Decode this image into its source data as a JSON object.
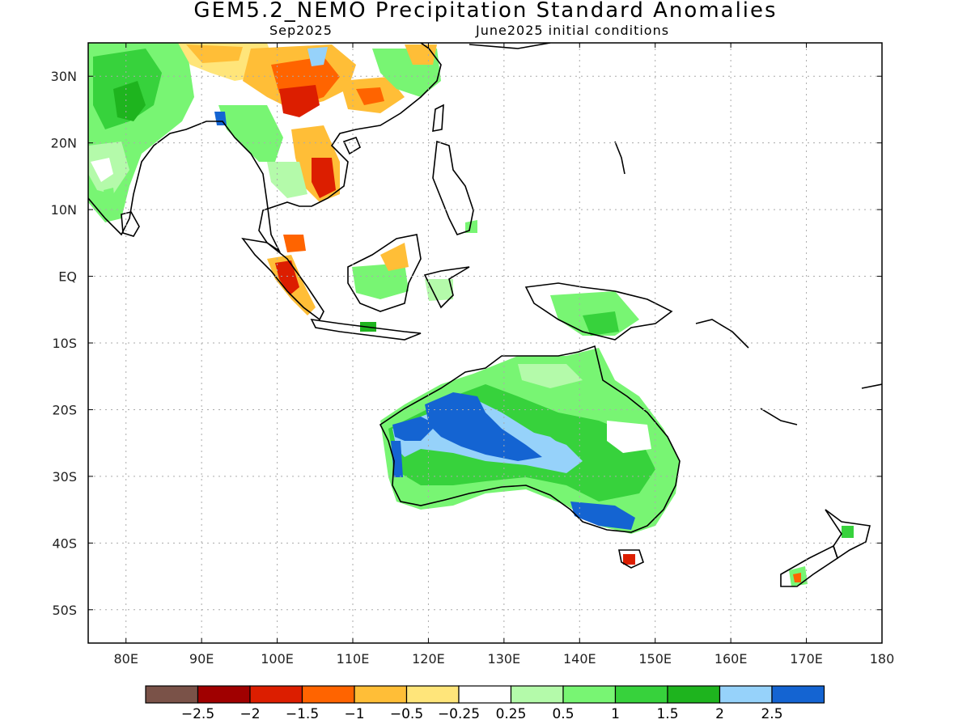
{
  "header": {
    "title": "GEM5.2_NEMO Precipitation Standard Anomalies",
    "valid_month": "Sep2025",
    "init": "June2025 initial conditions"
  },
  "map": {
    "lon_range": [
      75,
      180
    ],
    "lat_range": [
      -55,
      35
    ],
    "lon_ticks": [
      {
        "v": 80,
        "label": "80E"
      },
      {
        "v": 90,
        "label": "90E"
      },
      {
        "v": 100,
        "label": "100E"
      },
      {
        "v": 110,
        "label": "110E"
      },
      {
        "v": 120,
        "label": "120E"
      },
      {
        "v": 130,
        "label": "130E"
      },
      {
        "v": 140,
        "label": "140E"
      },
      {
        "v": 150,
        "label": "150E"
      },
      {
        "v": 160,
        "label": "160E"
      },
      {
        "v": 170,
        "label": "170E"
      },
      {
        "v": 180,
        "label": "180"
      }
    ],
    "lat_ticks": [
      {
        "v": 30,
        "label": "30N"
      },
      {
        "v": 20,
        "label": "20N"
      },
      {
        "v": 10,
        "label": "10N"
      },
      {
        "v": 0,
        "label": "EQ"
      },
      {
        "v": -10,
        "label": "10S"
      },
      {
        "v": -20,
        "label": "20S"
      },
      {
        "v": -30,
        "label": "30S"
      },
      {
        "v": -40,
        "label": "40S"
      },
      {
        "v": -50,
        "label": "50S"
      }
    ],
    "grid": true
  },
  "colorbar": {
    "colors": [
      "#7a5248",
      "#a00000",
      "#dc1e00",
      "#ff6400",
      "#ffbe37",
      "#ffe57a",
      "#ffffff",
      "#b4faaa",
      "#78f573",
      "#37d23c",
      "#1eb41e",
      "#96d2fa",
      "#1464d2"
    ],
    "labels": [
      "−2.5",
      "−2",
      "−1.5",
      "−1",
      "−0.5",
      "−0.25",
      "0.25",
      "0.5",
      "1",
      "1.5",
      "2",
      "2.5"
    ]
  },
  "colors": {
    "coast": "#000000",
    "grid": "#999999"
  }
}
